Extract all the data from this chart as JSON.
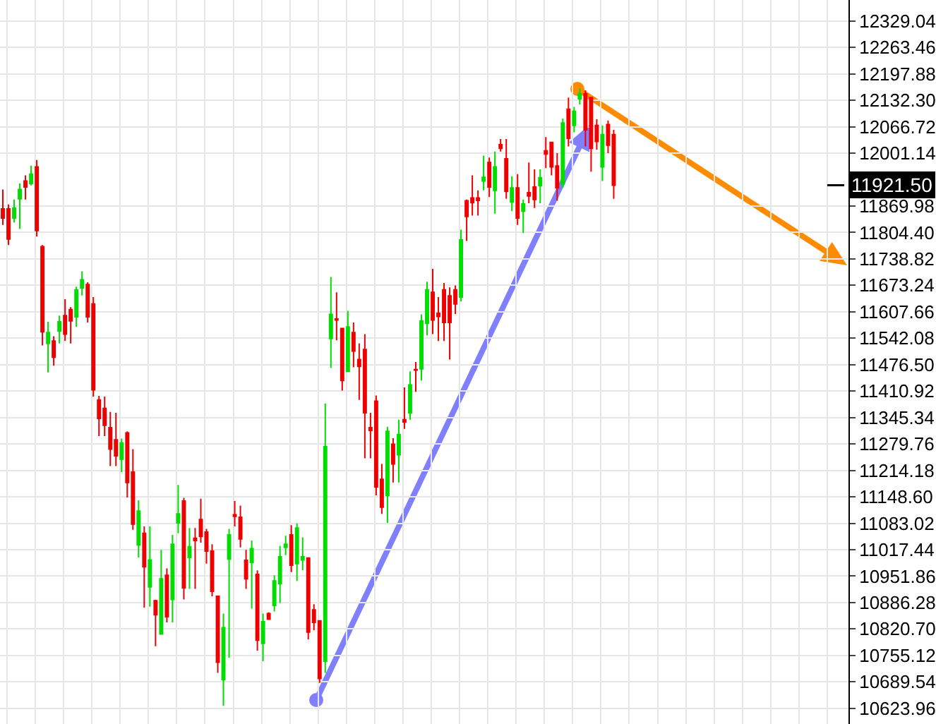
{
  "chart_data": {
    "type": "candlestick",
    "categories": [
      null,
      null,
      null,
      null,
      null,
      null,
      null,
      null,
      null,
      null,
      null,
      null,
      null,
      null,
      null,
      null,
      null,
      null,
      null,
      null,
      null,
      null,
      null,
      null,
      null,
      null,
      null,
      null,
      null,
      null,
      null,
      null,
      null,
      null,
      null,
      null,
      null,
      null,
      null,
      null,
      null,
      null,
      null,
      null,
      null,
      null,
      null,
      null,
      null,
      null,
      null,
      null,
      null,
      null,
      null,
      null,
      null,
      null,
      null,
      null,
      null,
      null,
      null,
      null,
      null,
      null,
      null,
      null,
      null,
      null,
      null,
      null,
      null,
      null,
      null,
      null,
      null,
      null,
      null,
      null,
      null,
      null,
      null,
      null,
      null,
      null,
      null,
      null,
      null,
      null,
      null,
      null,
      null,
      null,
      null,
      null,
      null,
      null,
      null,
      null,
      null,
      null,
      null,
      null,
      null,
      null,
      null,
      null,
      null,
      null,
      null,
      null,
      null,
      null,
      null,
      null,
      null,
      null,
      null,
      null,
      null,
      null,
      null,
      null,
      null,
      null,
      null,
      null,
      null,
      null,
      null,
      null,
      null,
      null,
      null,
      null,
      null,
      null,
      null,
      null,
      null,
      null,
      null,
      null,
      null,
      null,
      null,
      null,
      null,
      null
    ],
    "ohlc": [
      [
        11863,
        11911,
        11823,
        11840
      ],
      [
        11863,
        11874,
        11773,
        11788
      ],
      [
        11840,
        11886,
        11829,
        11865
      ],
      [
        11888,
        11926,
        11813,
        11911
      ],
      [
        11932,
        11946,
        11886,
        11917
      ],
      [
        11926,
        11970,
        11921,
        11949
      ],
      [
        11967,
        11984,
        11794,
        11809
      ],
      [
        11769,
        11773,
        11524,
        11558
      ],
      [
        11529,
        11583,
        11457,
        11556
      ],
      [
        11535,
        11547,
        11474,
        11495
      ],
      [
        11560,
        11598,
        11529,
        11583
      ],
      [
        11598,
        11639,
        11535,
        11552
      ],
      [
        11613,
        11619,
        11529,
        11585
      ],
      [
        11595,
        11670,
        11570,
        11662
      ],
      [
        11667,
        11708,
        11648,
        11687
      ],
      [
        11675,
        11681,
        11581,
        11595
      ],
      [
        11627,
        11644,
        11397,
        11414
      ],
      [
        11389,
        11399,
        11299,
        11343
      ],
      [
        11368,
        11397,
        11299,
        11326
      ],
      [
        11320,
        11359,
        11225,
        11267
      ],
      [
        11290,
        11357,
        11225,
        11250
      ],
      [
        11242,
        11293,
        11210,
        11282
      ],
      [
        11307,
        11311,
        11147,
        11184
      ],
      [
        11210,
        11267,
        11067,
        11081
      ],
      [
        11029,
        11140,
        10998,
        11113
      ],
      [
        11058,
        11075,
        10874,
        10975
      ],
      [
        10925,
        11075,
        10876,
        10992
      ],
      [
        10891,
        10893,
        10778,
        10856
      ],
      [
        10808,
        11017,
        10808,
        10945
      ],
      [
        10954,
        10971,
        10837,
        10851
      ],
      [
        10894,
        11054,
        10837,
        11031
      ],
      [
        11084,
        11178,
        11058,
        11106
      ],
      [
        11138,
        11146,
        10894,
        10923
      ],
      [
        10998,
        11071,
        10920,
        11025
      ],
      [
        11046,
        11071,
        10920,
        11040
      ],
      [
        11092,
        11144,
        11035,
        11050
      ],
      [
        11061,
        11069,
        10983,
        11014
      ],
      [
        11014,
        11031,
        10902,
        10914
      ],
      [
        10902,
        10902,
        10712,
        10738
      ],
      [
        10695,
        10859,
        10630,
        10824
      ],
      [
        10994,
        11069,
        10749,
        11054
      ],
      [
        11104,
        11138,
        11075,
        11100
      ],
      [
        11098,
        11127,
        11023,
        11044
      ],
      [
        10991,
        11017,
        10920,
        10945
      ],
      [
        10986,
        11040,
        10871,
        11020
      ],
      [
        10956,
        10966,
        10767,
        10793
      ],
      [
        10785,
        10859,
        10741,
        10839
      ],
      [
        10859,
        10862,
        10845,
        10845
      ],
      [
        10879,
        10954,
        10864,
        10940
      ],
      [
        10933,
        11027,
        10885,
        11000
      ],
      [
        11023,
        11052,
        11004,
        11031
      ],
      [
        11054,
        11078,
        10962,
        10979
      ],
      [
        10983,
        11083,
        10940,
        11071
      ],
      [
        10992,
        11048,
        10966,
        11000
      ],
      [
        10997,
        10997,
        10795,
        10813
      ],
      [
        10868,
        10882,
        10818,
        10837
      ],
      [
        10841,
        10841,
        10687,
        10698
      ],
      [
        10741,
        11380,
        10712,
        11273
      ],
      [
        11541,
        11694,
        11468,
        11601
      ],
      [
        11590,
        11656,
        11537,
        11587
      ],
      [
        11566,
        11566,
        11412,
        11437
      ],
      [
        11460,
        11610,
        11460,
        11570
      ],
      [
        11556,
        11581,
        11470,
        11510
      ],
      [
        11489,
        11529,
        11389,
        11472
      ],
      [
        11514,
        11552,
        11244,
        11357
      ],
      [
        11320,
        11357,
        11244,
        11313
      ],
      [
        11386,
        11400,
        11152,
        11173
      ],
      [
        11192,
        11230,
        11106,
        11123
      ],
      [
        11152,
        11322,
        11084,
        11311
      ],
      [
        11279,
        11294,
        11184,
        11230
      ],
      [
        11253,
        11340,
        11184,
        11303
      ],
      [
        11340,
        11420,
        11317,
        11334
      ],
      [
        11357,
        11460,
        11340,
        11426
      ],
      [
        11464,
        11483,
        11409,
        11463
      ],
      [
        11466,
        11601,
        11437,
        11585
      ],
      [
        11579,
        11682,
        11549,
        11662
      ],
      [
        11656,
        11714,
        11552,
        11587
      ],
      [
        11604,
        11644,
        11535,
        11596
      ],
      [
        11662,
        11679,
        11535,
        11581
      ],
      [
        11647,
        11668,
        11489,
        11581
      ],
      [
        11662,
        11673,
        11602,
        11627
      ],
      [
        11644,
        11811,
        11633,
        11786
      ],
      [
        11883,
        11886,
        11783,
        11844
      ],
      [
        11890,
        11946,
        11846,
        11878
      ],
      [
        11890,
        11909,
        11846,
        11884
      ],
      [
        11932,
        11995,
        11909,
        11941
      ],
      [
        11978,
        11990,
        11892,
        11917
      ],
      [
        11909,
        12005,
        11851,
        11967
      ],
      [
        12022,
        12036,
        12005,
        12013
      ],
      [
        11987,
        12036,
        11888,
        11906
      ],
      [
        11880,
        11944,
        11857,
        11915
      ],
      [
        11915,
        11949,
        11823,
        11840
      ],
      [
        11857,
        11886,
        11803,
        11875
      ],
      [
        11903,
        11978,
        11877,
        11895
      ],
      [
        11917,
        11961,
        11865,
        11886
      ],
      [
        11920,
        11961,
        11877,
        11940
      ],
      [
        12007,
        12041,
        11964,
        11999
      ],
      [
        12028,
        12028,
        11946,
        11967
      ],
      [
        11969,
        12001,
        11883,
        11915
      ],
      [
        11924,
        12087,
        11915,
        12076
      ],
      [
        12110,
        12139,
        12018,
        12038
      ],
      [
        12070,
        12116,
        12053,
        12105
      ],
      [
        12136,
        12162,
        12122,
        12148
      ],
      [
        12148,
        12157,
        12018,
        12059
      ],
      [
        12139,
        12139,
        11955,
        12013
      ],
      [
        12070,
        12085,
        12010,
        12030
      ],
      [
        11967,
        12070,
        11932,
        12047
      ],
      [
        12072,
        12082,
        12001,
        12021
      ],
      [
        12047,
        12059,
        11888,
        11921.5
      ],
      null,
      null,
      null,
      null,
      null,
      null,
      null,
      null,
      null,
      null,
      null,
      null,
      null,
      null,
      null,
      null,
      null,
      null,
      null,
      null,
      null,
      null,
      null,
      null,
      null,
      null,
      null,
      null,
      null,
      null,
      null,
      null,
      null,
      null,
      null,
      null,
      null,
      null,
      null,
      null,
      null
    ],
    "colors": [
      "#ee0000",
      "#ee0000",
      "#00dd00",
      "#00dd00",
      "#ee0000",
      "#00dd00",
      "#ee0000",
      "#ee0000",
      "#00dd00",
      "#ee0000",
      "#00dd00",
      "#ee0000",
      "#ee0000",
      "#00dd00",
      "#00dd00",
      "#ee0000",
      "#ee0000",
      "#ee0000",
      "#ee0000",
      "#ee0000",
      "#ee0000",
      "#00dd00",
      "#ee0000",
      "#ee0000",
      "#00dd00",
      "#ee0000",
      "#00dd00",
      "#ee0000",
      "#00dd00",
      "#ee0000",
      "#00dd00",
      "#00dd00",
      "#ee0000",
      "#00dd00",
      "#ee0000",
      "#ee0000",
      "#ee0000",
      "#ee0000",
      "#ee0000",
      "#00dd00",
      "#00dd00",
      "#ee0000",
      "#ee0000",
      "#ee0000",
      "#00dd00",
      "#ee0000",
      "#00dd00",
      "#ee0000",
      "#00dd00",
      "#00dd00",
      "#00dd00",
      "#ee0000",
      "#00dd00",
      "#00dd00",
      "#ee0000",
      "#ee0000",
      "#ee0000",
      "#00dd00",
      "#00dd00",
      "#ee0000",
      "#ee0000",
      "#00dd00",
      "#ee0000",
      "#ee0000",
      "#ee0000",
      "#ee0000",
      "#ee0000",
      "#ee0000",
      "#00dd00",
      "#ee0000",
      "#00dd00",
      "#ee0000",
      "#00dd00",
      "#ee0000",
      "#00dd00",
      "#00dd00",
      "#ee0000",
      "#ee0000",
      "#ee0000",
      "#ee0000",
      "#ee0000",
      "#00dd00",
      "#ee0000",
      "#ee0000",
      "#ee0000",
      "#00dd00",
      "#ee0000",
      "#00dd00",
      "#ee0000",
      "#ee0000",
      "#00dd00",
      "#ee0000",
      "#00dd00",
      "#ee0000",
      "#ee0000",
      "#00dd00",
      "#ee0000",
      "#ee0000",
      "#ee0000",
      "#00dd00",
      "#ee0000",
      "#00dd00",
      "#00dd00",
      "#ee0000",
      "#ee0000",
      "#ee0000",
      "#00dd00",
      "#ee0000",
      "#ee0000",
      null,
      null,
      null,
      null,
      null,
      null,
      null,
      null,
      null,
      null,
      null,
      null,
      null,
      null,
      null,
      null,
      null,
      null,
      null,
      null,
      null,
      null,
      null,
      null,
      null,
      null,
      null,
      null,
      null,
      null,
      null,
      null,
      null,
      null,
      null,
      null,
      null,
      null,
      null,
      null,
      null
    ],
    "ylim": [
      10585,
      12381
    ],
    "yticks": [
      12329.04,
      12263.46,
      12197.88,
      {
        "value": 12132.3,
        "label": "12132.30"
      },
      12066.72,
      12001.14,
      11869.98,
      {
        "value": 11804.4,
        "label": "11804.40"
      },
      11738.82,
      11673.24,
      11607.66,
      11542.08,
      {
        "value": 11476.5,
        "label": "11476.50"
      },
      11410.92,
      11345.34,
      11279.76,
      11214.18,
      {
        "value": 11148.6,
        "label": "11148.60"
      },
      11083.02,
      11017.44,
      10951.86,
      10886.28,
      {
        "value": 10820.7,
        "label": "10820.70"
      },
      10755.12,
      10689.54,
      10623.96
    ],
    "ref_lines": [
      {
        "axis": "y",
        "value": 11921.5,
        "label": "11921.50",
        "color": "#000000"
      }
    ],
    "grid": true,
    "tick_labels": "y"
  }
}
